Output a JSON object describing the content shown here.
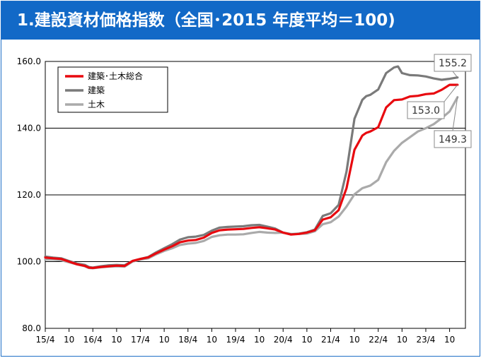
{
  "title": "1.建設資材価格指数（全国･2015 年度平均＝100)",
  "colors": {
    "title_bg": "#1269c7",
    "series": [
      "#e8090f",
      "#7a7a7a",
      "#aaaaaa"
    ]
  },
  "chart_data": {
    "type": "line",
    "title": "1.建設資材価格指数（全国･2015 年度平均＝100)",
    "xlabel": "",
    "ylabel": "",
    "ylim": [
      80.0,
      160.0
    ],
    "y_ticks": [
      "80.0",
      "100.0",
      "120.0",
      "140.0",
      "160.0"
    ],
    "y_tick_values": [
      80,
      100,
      120,
      140,
      160
    ],
    "x_tick_labels": [
      "15/4",
      "10",
      "16/4",
      "10",
      "17/4",
      "10",
      "18/4",
      "10",
      "19/4",
      "10",
      "20/4",
      "10",
      "21/4",
      "10",
      "22/4",
      "10",
      "23/4",
      "10"
    ],
    "x_tick_months": [
      0,
      6,
      12,
      18,
      24,
      30,
      36,
      42,
      48,
      54,
      60,
      66,
      72,
      78,
      84,
      90,
      96,
      102
    ],
    "x_unit": "months since 2015/4",
    "grid": "horizontal",
    "legend_position": "top-left",
    "series": [
      {
        "name": "建築･土木総合",
        "x": [
          0,
          2,
          4,
          6,
          8,
          10,
          11,
          12,
          14,
          16,
          18,
          20,
          22,
          24,
          26,
          28,
          30,
          32,
          34,
          36,
          38,
          40,
          42,
          44,
          46,
          48,
          50,
          52,
          54,
          56,
          58,
          60,
          62,
          64,
          66,
          68,
          70,
          72,
          74,
          76,
          78,
          80,
          81,
          82,
          84,
          86,
          88,
          90,
          92,
          94,
          96,
          98,
          100,
          102,
          104
        ],
        "values": [
          101.2,
          101.0,
          100.8,
          100.0,
          99.2,
          98.7,
          98.2,
          98.1,
          98.4,
          98.6,
          98.8,
          98.7,
          100.2,
          100.8,
          101.3,
          102.5,
          103.6,
          104.6,
          105.8,
          106.3,
          106.5,
          107.2,
          108.6,
          109.4,
          109.6,
          109.7,
          109.8,
          110.1,
          110.3,
          110.0,
          109.6,
          108.7,
          108.1,
          108.3,
          108.7,
          109.4,
          112.6,
          113.3,
          115.4,
          122.0,
          133.5,
          137.8,
          138.6,
          139.0,
          140.3,
          146.2,
          148.4,
          148.6,
          149.5,
          149.7,
          150.2,
          150.4,
          151.5,
          153.0,
          153.0
        ]
      },
      {
        "name": "建築",
        "x": [
          0,
          2,
          4,
          6,
          8,
          10,
          11,
          12,
          14,
          16,
          18,
          20,
          22,
          24,
          26,
          28,
          30,
          32,
          34,
          36,
          38,
          40,
          42,
          44,
          46,
          48,
          50,
          52,
          54,
          56,
          58,
          60,
          62,
          64,
          66,
          68,
          70,
          72,
          74,
          76,
          78,
          80,
          81,
          82,
          84,
          86,
          88,
          89,
          90,
          92,
          94,
          96,
          98,
          100,
          102,
          104
        ],
        "values": [
          101.5,
          101.2,
          101.0,
          100.2,
          99.4,
          99.0,
          98.4,
          98.2,
          98.6,
          98.9,
          99.0,
          98.9,
          100.2,
          100.8,
          101.4,
          102.8,
          104.0,
          105.2,
          106.6,
          107.3,
          107.5,
          108.0,
          109.3,
          110.2,
          110.4,
          110.5,
          110.6,
          110.9,
          111.0,
          110.5,
          109.9,
          108.7,
          108.2,
          108.4,
          108.8,
          109.6,
          113.7,
          114.5,
          117.0,
          127.0,
          142.8,
          148.5,
          149.6,
          150.0,
          151.6,
          156.5,
          158.2,
          158.5,
          156.5,
          155.9,
          155.8,
          155.5,
          154.9,
          154.5,
          154.8,
          155.2
        ]
      },
      {
        "name": "土木",
        "x": [
          0,
          2,
          4,
          6,
          8,
          10,
          11,
          12,
          14,
          16,
          18,
          20,
          22,
          24,
          26,
          28,
          30,
          32,
          34,
          36,
          38,
          40,
          42,
          44,
          46,
          48,
          50,
          52,
          54,
          56,
          58,
          60,
          62,
          64,
          66,
          68,
          70,
          72,
          74,
          76,
          78,
          80,
          82,
          84,
          86,
          88,
          90,
          92,
          94,
          96,
          98,
          100,
          102,
          104
        ],
        "values": [
          100.6,
          100.6,
          100.4,
          99.8,
          99.2,
          98.6,
          98.1,
          98.0,
          98.3,
          98.5,
          98.6,
          98.5,
          100.0,
          100.6,
          101.0,
          102.2,
          103.2,
          104.0,
          105.0,
          105.4,
          105.6,
          106.2,
          107.4,
          107.9,
          108.1,
          108.1,
          108.2,
          108.6,
          108.9,
          108.7,
          108.6,
          108.7,
          108.3,
          108.3,
          108.4,
          109.1,
          111.2,
          111.8,
          113.5,
          116.5,
          120.2,
          122.0,
          122.8,
          124.5,
          129.8,
          133.2,
          135.6,
          137.3,
          139.0,
          140.0,
          141.2,
          143.0,
          145.0,
          149.3
        ]
      }
    ],
    "annotations": [
      {
        "label": "155.2",
        "series": "建築"
      },
      {
        "label": "153.0",
        "series": "建築･土木総合"
      },
      {
        "label": "149.3",
        "series": "土木"
      }
    ]
  }
}
